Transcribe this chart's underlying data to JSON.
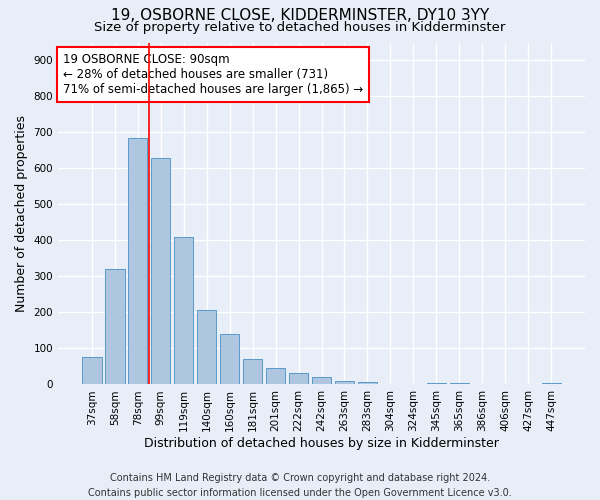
{
  "title": "19, OSBORNE CLOSE, KIDDERMINSTER, DY10 3YY",
  "subtitle": "Size of property relative to detached houses in Kidderminster",
  "xlabel": "Distribution of detached houses by size in Kidderminster",
  "ylabel": "Number of detached properties",
  "footer_line1": "Contains HM Land Registry data © Crown copyright and database right 2024.",
  "footer_line2": "Contains public sector information licensed under the Open Government Licence v3.0.",
  "categories": [
    "37sqm",
    "58sqm",
    "78sqm",
    "99sqm",
    "119sqm",
    "140sqm",
    "160sqm",
    "181sqm",
    "201sqm",
    "222sqm",
    "242sqm",
    "263sqm",
    "283sqm",
    "304sqm",
    "324sqm",
    "345sqm",
    "365sqm",
    "386sqm",
    "406sqm",
    "427sqm",
    "447sqm"
  ],
  "values": [
    75,
    320,
    685,
    630,
    410,
    208,
    140,
    70,
    45,
    32,
    20,
    10,
    7,
    0,
    0,
    5,
    5,
    0,
    0,
    0,
    5
  ],
  "bar_color": "#aec6e0",
  "bar_edge_color": "#5a9bc8",
  "annotation_text": "19 OSBORNE CLOSE: 90sqm\n← 28% of detached houses are smaller (731)\n71% of semi-detached houses are larger (1,865) →",
  "annotation_box_color": "white",
  "annotation_box_edge_color": "red",
  "vline_color": "red",
  "ylim": [
    0,
    950
  ],
  "yticks": [
    0,
    100,
    200,
    300,
    400,
    500,
    600,
    700,
    800,
    900
  ],
  "background_color": "#e8eef8",
  "grid_color": "white",
  "title_fontsize": 11,
  "subtitle_fontsize": 9.5,
  "axis_label_fontsize": 9,
  "tick_fontsize": 7.5,
  "annotation_fontsize": 8.5,
  "footer_fontsize": 7
}
